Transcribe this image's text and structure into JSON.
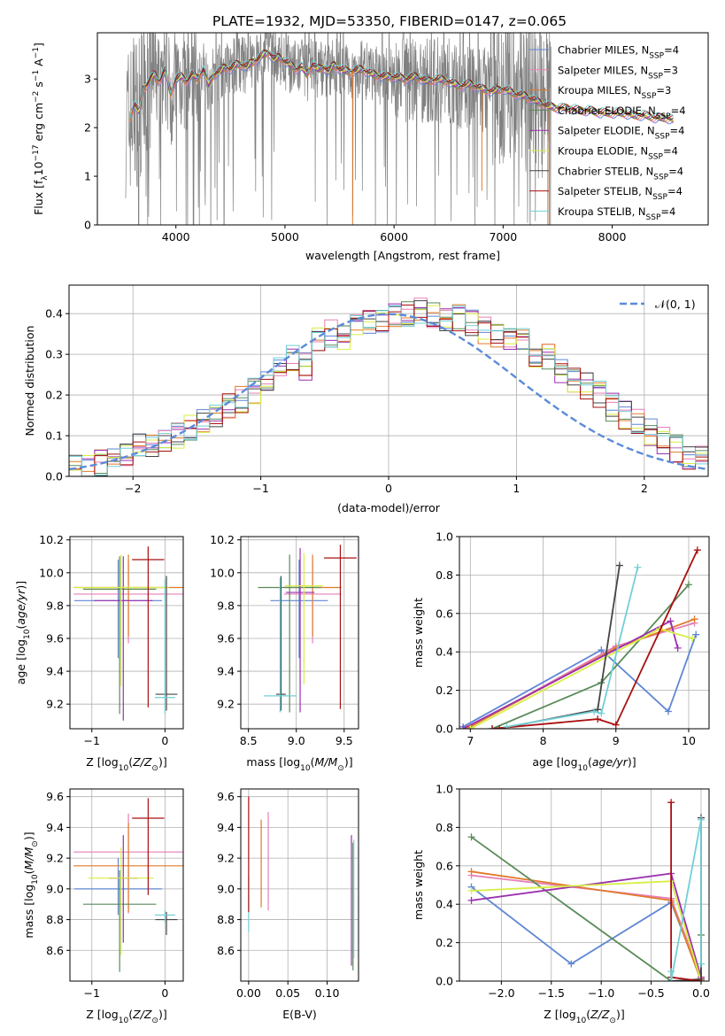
{
  "figure_title": "PLATE=1932, MJD=53350, FIBERID=0147, z=0.065",
  "colors": {
    "spectrum": "#808080",
    "grid": "#b0b0b0",
    "gaussian": "#5b8bd9"
  },
  "legend_spectrum": [
    {
      "label": "Chabrier MILES, N",
      "sub": "SSP",
      "suffix": "=4",
      "color": "#5f86d4"
    },
    {
      "label": "Salpeter MILES, N",
      "sub": "SSP",
      "suffix": "=3",
      "color": "#e87fb7"
    },
    {
      "label": "Kroupa MILES, N",
      "sub": "SSP",
      "suffix": "=3",
      "color": "#e07a2a"
    },
    {
      "label": "Chabrier ELODIE, N",
      "sub": "SSP",
      "suffix": "=4",
      "color": "#5a8b5a"
    },
    {
      "label": "Salpeter ELODIE, N",
      "sub": "SSP",
      "suffix": "=4",
      "color": "#9b2fb0"
    },
    {
      "label": "Kroupa ELODIE, N",
      "sub": "SSP",
      "suffix": "=4",
      "color": "#d8ee45"
    },
    {
      "label": "Chabrier STELIB, N",
      "sub": "SSP",
      "suffix": "=4",
      "color": "#444444"
    },
    {
      "label": "Salpeter STELIB, N",
      "sub": "SSP",
      "suffix": "=4",
      "color": "#a81010"
    },
    {
      "label": "Kroupa STELIB, N",
      "sub": "SSP",
      "suffix": "=4",
      "color": "#72cfd6"
    }
  ],
  "legend_hist": {
    "label": "𝒩(0, 1)"
  },
  "chart_data": [
    {
      "id": "spectrum",
      "type": "line",
      "xlabel": "wavelength [Angstrom, rest frame]",
      "ylabel": "Flux [f",
      "xlim": [
        3280,
        8880
      ],
      "ylim": [
        0,
        3.95
      ],
      "xticks": [
        4000,
        5000,
        6000,
        7000,
        8000
      ],
      "yticks": [
        0,
        1,
        2,
        3
      ],
      "grid": false,
      "legend": "top-right",
      "model_curve": {
        "x": [
          3580,
          3620,
          3660,
          3700,
          3740,
          3800,
          3850,
          3900,
          3950,
          4000,
          4050,
          4100,
          4150,
          4200,
          4250,
          4300,
          4350,
          4400,
          4450,
          4500,
          4550,
          4600,
          4650,
          4700,
          4750,
          4800,
          4850,
          4900,
          4950,
          5000,
          5050,
          5100,
          5150,
          5200,
          5250,
          5300,
          5350,
          5400,
          5450,
          5500,
          5600,
          5700,
          5800,
          5900,
          6000,
          6100,
          6200,
          6300,
          6400,
          6500,
          6600,
          6700,
          6800,
          6900,
          7000,
          7100,
          7200,
          7300,
          7400,
          7500,
          7600,
          7700,
          7800,
          7900,
          8000,
          8100,
          8200,
          8300,
          8400,
          8500,
          8560
        ],
        "y": [
          2.2,
          2.5,
          2.3,
          2.8,
          2.9,
          3.1,
          2.95,
          3.2,
          2.7,
          3.0,
          3.05,
          2.95,
          3.1,
          3.0,
          3.2,
          2.9,
          3.1,
          3.15,
          3.25,
          3.2,
          3.3,
          3.3,
          3.25,
          3.35,
          3.4,
          3.5,
          3.55,
          3.4,
          3.45,
          3.35,
          3.3,
          3.2,
          3.25,
          3.1,
          3.3,
          3.2,
          3.25,
          3.15,
          3.3,
          3.2,
          3.15,
          3.2,
          3.1,
          3.05,
          3.05,
          3.0,
          3.05,
          2.95,
          3.0,
          2.95,
          2.85,
          2.9,
          2.8,
          2.75,
          2.8,
          2.7,
          2.65,
          2.55,
          2.45,
          2.4,
          2.4,
          2.35,
          2.35,
          2.3,
          2.3,
          2.3,
          2.25,
          2.25,
          2.2,
          2.2,
          2.15
        ]
      }
    },
    {
      "id": "residuals",
      "type": "bar",
      "xlabel": "(data-model)/error",
      "ylabel": "Normed distribution",
      "xlim": [
        -2.5,
        2.5
      ],
      "ylim": [
        0,
        0.47
      ],
      "xticks": [
        -2,
        -1,
        0,
        1,
        2
      ],
      "yticks": [
        0.0,
        0.1,
        0.2,
        0.3,
        0.4
      ],
      "grid": true,
      "legend": "top-right",
      "bin_width": 0.1,
      "bin_heights": [
        0.02,
        0.025,
        0.03,
        0.035,
        0.05,
        0.08,
        0.07,
        0.09,
        0.1,
        0.12,
        0.13,
        0.15,
        0.17,
        0.19,
        0.21,
        0.23,
        0.27,
        0.29,
        0.27,
        0.33,
        0.35,
        0.34,
        0.37,
        0.38,
        0.39,
        0.395,
        0.4,
        0.41,
        0.4,
        0.39,
        0.39,
        0.38,
        0.36,
        0.35,
        0.34,
        0.33,
        0.3,
        0.29,
        0.26,
        0.24,
        0.22,
        0.2,
        0.17,
        0.15,
        0.13,
        0.11,
        0.09,
        0.07,
        0.05,
        0.04,
        0.03
      ]
    },
    {
      "id": "age_vs_z",
      "type": "scatter",
      "xlabel": "Z [log",
      "ylabel": "age  [log",
      "xlim": [
        -1.3,
        0.25
      ],
      "ylim": [
        9.05,
        10.22
      ],
      "xticks": [
        -1,
        0
      ],
      "yticks": [
        9.2,
        9.4,
        9.6,
        9.8,
        10.0,
        10.2
      ],
      "grid": true,
      "points": [
        {
          "x": -0.64,
          "y": 9.83,
          "xerr": 0.6,
          "yerr": [
            0.35,
            0.25
          ],
          "series": 0
        },
        {
          "x": -0.5,
          "y": 9.87,
          "xerr": 0.75,
          "yerr": [
            0.3,
            0.2
          ],
          "series": 1
        },
        {
          "x": -0.5,
          "y": 9.91,
          "xerr": 0.75,
          "yerr": [
            0.3,
            0.2
          ],
          "series": 2
        },
        {
          "x": -0.62,
          "y": 9.9,
          "xerr": 0.5,
          "yerr": [
            0.76,
            0.2
          ],
          "series": 3
        },
        {
          "x": -0.57,
          "y": 9.83,
          "xerr": 0.4,
          "yerr": [
            0.73,
            0.27
          ],
          "series": 4
        },
        {
          "x": -0.6,
          "y": 9.91,
          "xerr": 0.65,
          "yerr": [
            0.6,
            0.2
          ],
          "series": 5
        },
        {
          "x": 0.02,
          "y": 9.26,
          "xerr": 0.15,
          "yerr": [
            0.1,
            0.72
          ],
          "series": 6
        },
        {
          "x": -0.23,
          "y": 10.08,
          "xerr": 0.22,
          "yerr": [
            0.9,
            0.08
          ],
          "series": 7
        },
        {
          "x": 0.0,
          "y": 9.24,
          "xerr": 0.14,
          "yerr": [
            0.1,
            0.72
          ],
          "series": 8
        }
      ]
    },
    {
      "id": "age_vs_mass",
      "type": "scatter",
      "xlabel": "mass [log",
      "ylabel": "",
      "xlim": [
        8.42,
        9.65
      ],
      "ylim": [
        9.05,
        10.22
      ],
      "xticks": [
        8.5,
        9.0,
        9.5
      ],
      "yticks": [
        9.2,
        9.4,
        9.6,
        9.8,
        10.0,
        10.2
      ],
      "grid": true,
      "points": [
        {
          "x": 9.03,
          "y": 9.83,
          "xerr": 0.3,
          "yerr": [
            0.35,
            0.25
          ],
          "series": 0
        },
        {
          "x": 9.17,
          "y": 9.87,
          "xerr": 0.3,
          "yerr": [
            0.3,
            0.2
          ],
          "series": 1
        },
        {
          "x": 9.17,
          "y": 9.91,
          "xerr": 0.3,
          "yerr": [
            0.3,
            0.2
          ],
          "series": 2
        },
        {
          "x": 8.93,
          "y": 9.91,
          "xerr": 0.33,
          "yerr": [
            0.76,
            0.2
          ],
          "series": 3
        },
        {
          "x": 9.04,
          "y": 9.88,
          "xerr": 0.15,
          "yerr": [
            0.73,
            0.27
          ],
          "series": 4
        },
        {
          "x": 9.08,
          "y": 9.92,
          "xerr": 0.2,
          "yerr": [
            0.6,
            0.2
          ],
          "series": 5
        },
        {
          "x": 8.84,
          "y": 9.26,
          "xerr": 0.05,
          "yerr": [
            0.1,
            0.72
          ],
          "series": 6
        },
        {
          "x": 9.46,
          "y": 10.09,
          "xerr": 0.17,
          "yerr": [
            0.92,
            0.08
          ],
          "series": 7
        },
        {
          "x": 8.83,
          "y": 9.25,
          "xerr": 0.17,
          "yerr": [
            0.1,
            0.72
          ],
          "series": 8
        }
      ]
    },
    {
      "id": "weight_vs_age",
      "type": "line",
      "xlabel": "age  [log",
      "ylabel": "mass weight",
      "xlim": [
        6.85,
        10.28
      ],
      "ylim": [
        0,
        1.0
      ],
      "xticks": [
        7,
        8,
        9,
        10
      ],
      "yticks": [
        0.0,
        0.2,
        0.4,
        0.6,
        0.8,
        1.0
      ],
      "grid": true,
      "series": [
        {
          "x": [
            6.9,
            8.8,
            9.72,
            10.1
          ],
          "y": [
            0.01,
            0.41,
            0.09,
            0.49
          ]
        },
        {
          "x": [
            6.95,
            9.0,
            10.08
          ],
          "y": [
            0.0,
            0.43,
            0.55
          ]
        },
        {
          "x": [
            6.95,
            9.0,
            10.08
          ],
          "y": [
            0.0,
            0.42,
            0.57
          ]
        },
        {
          "x": [
            7.3,
            8.8,
            10.0
          ],
          "y": [
            0.0,
            0.24,
            0.75
          ]
        },
        {
          "x": [
            6.9,
            9.75,
            9.85
          ],
          "y": [
            0.0,
            0.56,
            0.42
          ]
        },
        {
          "x": [
            7.0,
            9.6,
            10.05
          ],
          "y": [
            0.0,
            0.52,
            0.47
          ]
        },
        {
          "x": [
            7.4,
            8.75,
            9.05
          ],
          "y": [
            0.0,
            0.1,
            0.85
          ]
        },
        {
          "x": [
            7.3,
            8.75,
            9.0,
            10.12
          ],
          "y": [
            0.0,
            0.05,
            0.02,
            0.93
          ]
        },
        {
          "x": [
            7.5,
            8.7,
            8.8,
            9.3
          ],
          "y": [
            0.01,
            0.09,
            0.08,
            0.84
          ]
        }
      ]
    },
    {
      "id": "mass_vs_z",
      "type": "scatter",
      "xlabel": "Z [log",
      "ylabel": "mass [log",
      "xlim": [
        -1.3,
        0.25
      ],
      "ylim": [
        8.4,
        9.65
      ],
      "xticks": [
        -1,
        0
      ],
      "yticks": [
        8.6,
        8.8,
        9.0,
        9.2,
        9.4,
        9.6
      ],
      "grid": true,
      "points": [
        {
          "x": -0.64,
          "y": 9.0,
          "xerr": 0.6,
          "yerr": [
            0.17,
            0.2
          ],
          "series": 0
        },
        {
          "x": -0.5,
          "y": 9.24,
          "xerr": 0.75,
          "yerr": [
            0.4,
            0.25
          ],
          "series": 1
        },
        {
          "x": -0.5,
          "y": 9.15,
          "xerr": 0.75,
          "yerr": [
            0.3,
            0.28
          ],
          "series": 2
        },
        {
          "x": -0.62,
          "y": 8.9,
          "xerr": 0.5,
          "yerr": [
            0.44,
            0.22
          ],
          "series": 3
        },
        {
          "x": -0.57,
          "y": 9.07,
          "xerr": 0.2,
          "yerr": [
            0.42,
            0.28
          ],
          "series": 4
        },
        {
          "x": -0.6,
          "y": 9.07,
          "xerr": 0.45,
          "yerr": [
            0.5,
            0.2
          ],
          "series": 5
        },
        {
          "x": 0.02,
          "y": 8.8,
          "xerr": 0.15,
          "yerr": [
            0.1,
            0.05
          ],
          "series": 6
        },
        {
          "x": -0.23,
          "y": 9.46,
          "xerr": 0.22,
          "yerr": [
            0.5,
            0.13
          ],
          "series": 7
        },
        {
          "x": 0.0,
          "y": 8.83,
          "xerr": 0.14,
          "yerr": [
            0.05,
            0.03
          ],
          "series": 8
        }
      ]
    },
    {
      "id": "mass_vs_ebv",
      "type": "scatter",
      "xlabel": "E(B-V)",
      "ylabel": "",
      "xlim": [
        -0.01,
        0.14
      ],
      "ylim": [
        8.4,
        9.65
      ],
      "xticks": [
        0.0,
        0.05,
        0.1
      ],
      "yticks": [
        8.6,
        8.8,
        9.0,
        9.2,
        9.4,
        9.6
      ],
      "grid": true,
      "points": [
        {
          "x": 0.0,
          "y": 8.72,
          "ymin": 8.72,
          "ymax": 9.08,
          "series": 8
        },
        {
          "x": 0.0,
          "y": 8.85,
          "ymin": 8.85,
          "ymax": 9.6,
          "series": 7
        },
        {
          "x": 0.016,
          "y": 8.88,
          "ymin": 8.88,
          "ymax": 9.45,
          "series": 2
        },
        {
          "x": 0.025,
          "y": 8.86,
          "ymin": 8.86,
          "ymax": 9.5,
          "series": 1
        },
        {
          "x": 0.131,
          "y": 8.5,
          "ymin": 8.5,
          "ymax": 9.35,
          "series": 4
        },
        {
          "x": 0.133,
          "y": 8.47,
          "ymin": 8.47,
          "ymax": 9.3,
          "series": 3
        },
        {
          "x": 0.134,
          "y": 8.55,
          "ymin": 8.55,
          "ymax": 9.32,
          "series": 8
        }
      ]
    },
    {
      "id": "weight_vs_z",
      "type": "line",
      "xlabel": "Z [log",
      "ylabel": "mass weight",
      "xlim": [
        -2.42,
        0.08
      ],
      "ylim": [
        0,
        1.0
      ],
      "xticks": [
        -2.0,
        -1.5,
        -1.0,
        -0.5,
        0.0
      ],
      "yticks": [
        0.0,
        0.2,
        0.4,
        0.6,
        0.8,
        1.0
      ],
      "grid": true,
      "series": [
        {
          "x": [
            -2.3,
            -1.3,
            -0.3,
            0.0
          ],
          "y": [
            0.49,
            0.09,
            0.41,
            0.01
          ]
        },
        {
          "x": [
            -2.3,
            -0.3,
            0.0
          ],
          "y": [
            0.55,
            0.43,
            0.02
          ]
        },
        {
          "x": [
            -2.3,
            -0.3,
            0.0
          ],
          "y": [
            0.57,
            0.42,
            0.0
          ]
        },
        {
          "x": [
            -2.3,
            -0.3,
            0.0,
            0.0
          ],
          "y": [
            0.75,
            0.0,
            0.0,
            0.24
          ]
        },
        {
          "x": [
            -2.3,
            -0.3,
            0.0
          ],
          "y": [
            0.42,
            0.56,
            0.02
          ]
        },
        {
          "x": [
            -2.3,
            -0.3,
            0.0
          ],
          "y": [
            0.47,
            0.52,
            0.0
          ]
        },
        {
          "x": [
            -0.3,
            0.0,
            0.0
          ],
          "y": [
            0.0,
            0.01,
            0.85
          ]
        },
        {
          "x": [
            -0.3,
            -0.3,
            0.0
          ],
          "y": [
            0.93,
            0.02,
            0.0
          ]
        },
        {
          "x": [
            -0.3,
            -0.3,
            0.0,
            0.0
          ],
          "y": [
            0.05,
            0.0,
            0.84,
            0.09
          ]
        }
      ]
    }
  ]
}
